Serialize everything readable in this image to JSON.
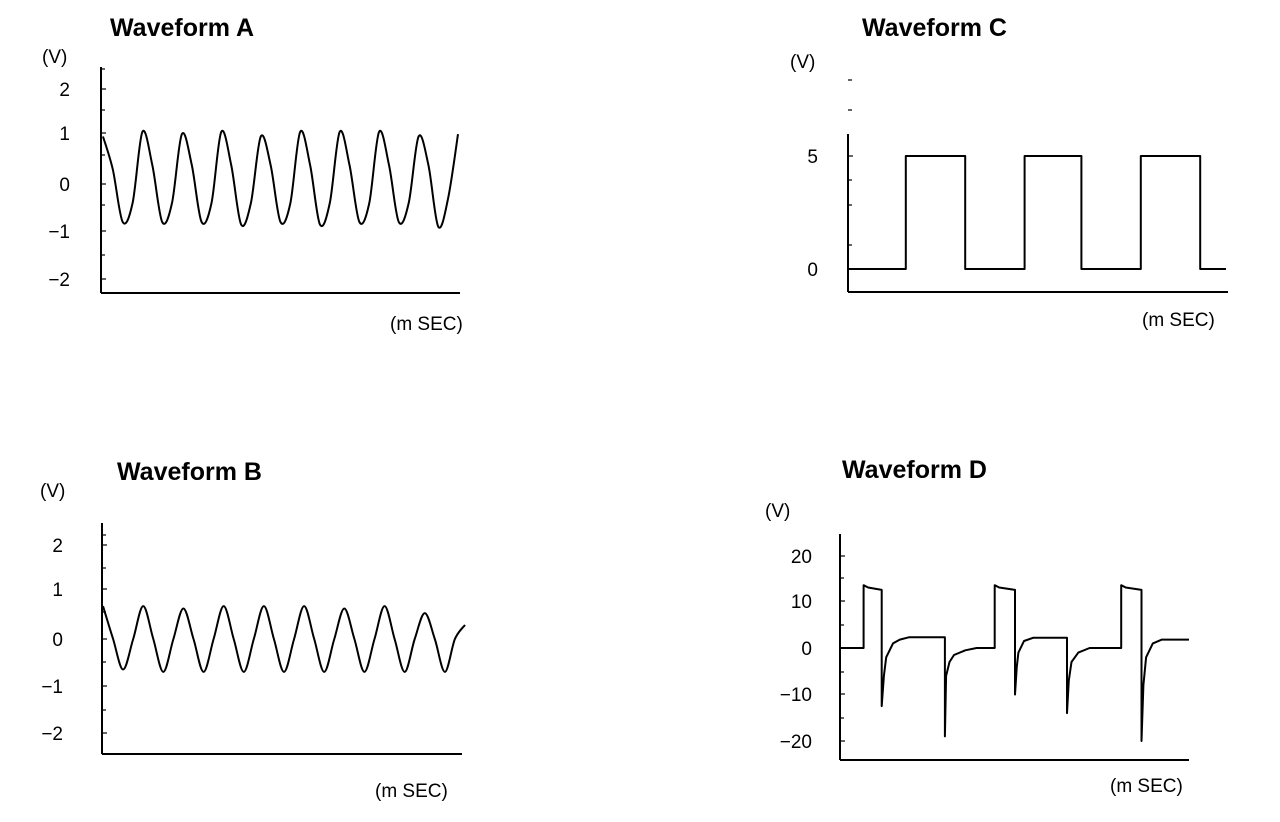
{
  "chart_data": [
    {
      "id": "A",
      "type": "line",
      "title": "Waveform A",
      "ylabel": "(V)",
      "xlabel": "(m SEC)",
      "y_ticks": [
        "2",
        "1",
        "0",
        "−1",
        "−2"
      ],
      "ylim": [
        -2.5,
        2.5
      ],
      "grid": false,
      "series": [
        {
          "x": [
            0,
            0.25,
            0.5,
            0.75,
            1,
            1.25,
            1.5,
            1.75,
            2,
            2.25,
            2.5,
            2.75,
            3,
            3.25,
            3.5,
            3.75,
            4,
            4.25,
            4.5,
            4.75,
            5,
            5.25,
            5.5,
            5.75,
            6,
            6.25,
            6.5,
            6.75,
            7,
            7.25,
            7.5,
            7.75,
            8,
            8.25,
            8.5,
            8.75,
            9
          ],
          "y": [
            1.0,
            0.3,
            -0.8,
            -0.4,
            1.1,
            0.4,
            -0.8,
            -0.4,
            1.05,
            0.4,
            -0.8,
            -0.4,
            1.1,
            0.4,
            -0.85,
            -0.4,
            1.0,
            0.4,
            -0.8,
            -0.4,
            1.1,
            0.4,
            -0.85,
            -0.4,
            1.1,
            0.4,
            -0.8,
            -0.4,
            1.1,
            0.4,
            -0.8,
            -0.4,
            1.0,
            0.4,
            -0.9,
            -0.3,
            1.05
          ]
        }
      ]
    },
    {
      "id": "B",
      "type": "line",
      "title": "Waveform B",
      "ylabel": "(V)",
      "xlabel": "(m SEC)",
      "y_ticks": [
        "2",
        "1",
        "0",
        "−1",
        "−2"
      ],
      "ylim": [
        -2.5,
        2.5
      ],
      "grid": false,
      "series": [
        {
          "x": [
            0,
            0.25,
            0.5,
            0.75,
            1,
            1.25,
            1.5,
            1.75,
            2,
            2.25,
            2.5,
            2.75,
            3,
            3.25,
            3.5,
            3.75,
            4,
            4.25,
            4.5,
            4.75,
            5,
            5.25,
            5.5,
            5.75,
            6,
            6.25,
            6.5,
            6.75,
            7,
            7.25,
            7.5,
            7.75,
            8,
            8.25,
            8.5,
            8.75,
            9
          ],
          "y": [
            0.7,
            0.0,
            -0.65,
            0.0,
            0.7,
            0.0,
            -0.7,
            0.0,
            0.65,
            0.0,
            -0.7,
            0.0,
            0.7,
            0.0,
            -0.7,
            0.0,
            0.7,
            0.0,
            -0.7,
            0.0,
            0.7,
            0.0,
            -0.7,
            0.0,
            0.65,
            0.0,
            -0.7,
            0.0,
            0.7,
            0.0,
            -0.7,
            0.0,
            0.55,
            0.0,
            -0.7,
            0.0,
            0.3
          ]
        }
      ]
    },
    {
      "id": "C",
      "type": "line",
      "title": "Waveform C",
      "ylabel": "(V)",
      "xlabel": "(m SEC)",
      "y_ticks": [
        "5",
        "0"
      ],
      "ylim": [
        -1,
        9
      ],
      "grid": false,
      "series": [
        {
          "x": [
            0,
            2.2,
            2.2,
            4.5,
            4.5,
            6.8,
            6.8,
            9.0,
            9.0,
            11.3,
            11.3,
            13.6,
            13.6,
            14.6
          ],
          "y": [
            0,
            0,
            5,
            5,
            0,
            0,
            5,
            5,
            0,
            0,
            5,
            5,
            0,
            0
          ]
        }
      ]
    },
    {
      "id": "D",
      "type": "line",
      "title": "Waveform D",
      "ylabel": "(V)",
      "xlabel": "(m SEC)",
      "y_ticks": [
        "20",
        "10",
        "0",
        "−10",
        "−20"
      ],
      "ylim": [
        -25,
        25
      ],
      "grid": false,
      "series": [
        {
          "x": [
            0,
            1.0,
            1.0,
            1.2,
            1.8,
            1.8,
            1.9,
            2.0,
            2.3,
            2.6,
            3.0,
            4.6,
            4.6,
            4.65,
            4.8,
            5.0,
            5.5,
            6.0,
            6.8,
            6.8,
            7.0,
            7.7,
            7.7,
            7.78,
            7.85,
            8.1,
            8.5,
            10.0,
            10.0,
            10.08,
            10.2,
            10.5,
            11.0,
            12.0,
            12.4,
            12.4,
            12.6,
            13.3,
            13.3,
            13.38,
            13.5,
            13.8,
            14.2,
            15.4
          ],
          "y": [
            0,
            0,
            13.5,
            13,
            12.5,
            -12.5,
            -6,
            -2,
            1,
            1.8,
            2.3,
            2.3,
            -19,
            -6,
            -3,
            -1.5,
            -0.5,
            0,
            0,
            13.5,
            13,
            12.5,
            -10,
            -4,
            -1,
            1.5,
            2.2,
            2.2,
            -14,
            -7,
            -3,
            -1,
            0,
            0,
            0,
            13.5,
            13,
            12.5,
            -20,
            -8,
            -2,
            1,
            1.8,
            1.8
          ]
        }
      ]
    }
  ]
}
